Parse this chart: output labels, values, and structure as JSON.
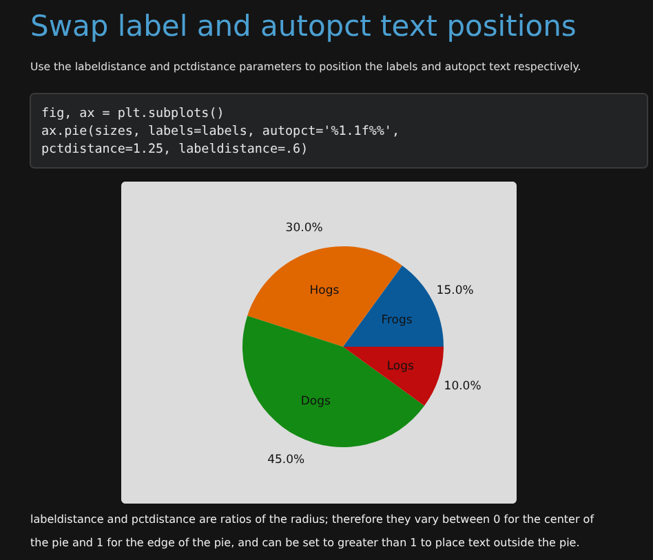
{
  "chart_data": {
    "type": "pie",
    "title": "Swap label and autopct text positions",
    "subtitle": "Use the labeldistance and pctdistance parameters to position the labels and autopct text respectively.",
    "categories": [
      "Frogs",
      "Hogs",
      "Dogs",
      "Logs"
    ],
    "values": [
      15,
      30,
      45,
      10
    ],
    "colors": [
      "#0a5a9a",
      "#e06600",
      "#138a13",
      "#c00c0c"
    ],
    "value_labels": [
      "15.0%",
      "30.0%",
      "45.0%",
      "10.0%"
    ],
    "annotations": [
      "fig, ax = plt.subplots()",
      "ax.pie(sizes, labels=labels, autopct='%1.1f%%',",
      "       pctdistance=1.25, labeldistance=.6)",
      "labeldistance and pctdistance are ratios of the radius; therefore they vary between 0 for the center of",
      "the pie and 1 for the edge of the pie, and can be set to greater than 1 to place text outside the pie."
    ],
    "legend": false
  }
}
